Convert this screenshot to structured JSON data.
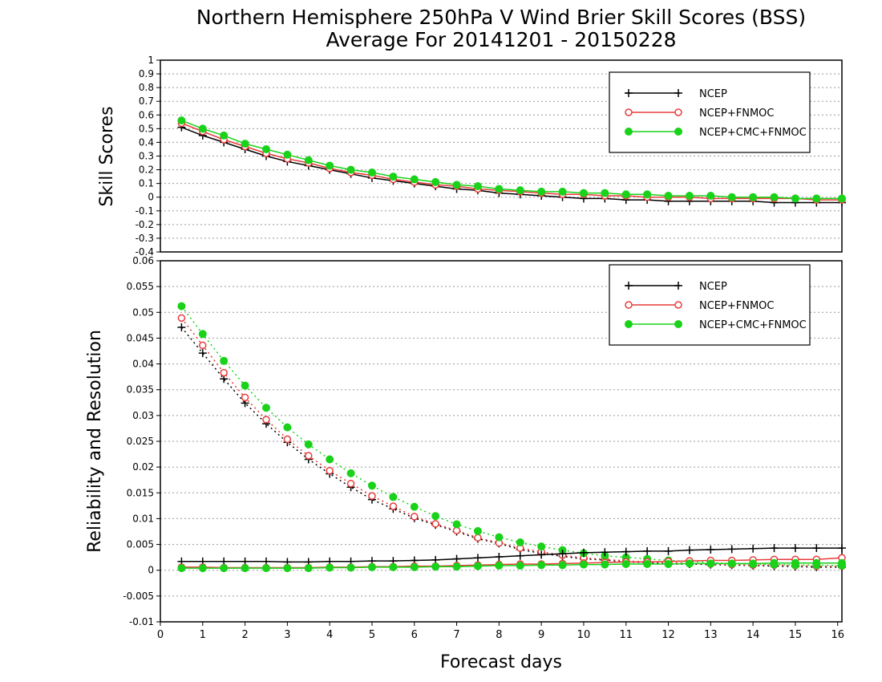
{
  "title_line1": "Northern Hemisphere 250hPa V Wind Brier Skill Scores (BSS)",
  "title_line2": "Average For 20141201 - 20150228",
  "chart_data": [
    {
      "type": "line",
      "ylabel": "Skill Scores",
      "ylim": [
        -0.4,
        1
      ],
      "yticks": [
        "1",
        "0.9",
        "0.8",
        "0.7",
        "0.6",
        "0.5",
        "0.4",
        "0.3",
        "0.2",
        "0.1",
        "0",
        "-0.1",
        "-0.2",
        "-0.3",
        "-0.4"
      ],
      "ytick_values": [
        1,
        0.9,
        0.8,
        0.7,
        0.6,
        0.5,
        0.4,
        0.3,
        0.2,
        0.1,
        0,
        -0.1,
        -0.2,
        -0.3,
        -0.4
      ],
      "xlim": [
        0,
        16.1
      ],
      "grid": true,
      "legend_position": "top-right",
      "x": [
        0.5,
        1,
        1.5,
        2,
        2.5,
        3,
        3.5,
        4,
        4.5,
        5,
        5.5,
        6,
        6.5,
        7,
        7.5,
        8,
        8.5,
        9,
        9.5,
        10,
        10.5,
        11,
        11.5,
        12,
        12.5,
        13,
        13.5,
        14,
        14.5,
        15,
        15.5,
        16.1
      ],
      "series": [
        {
          "name": "NCEP",
          "color": "#000000",
          "marker": "plus",
          "style": "solid",
          "values": [
            0.51,
            0.45,
            0.4,
            0.35,
            0.3,
            0.26,
            0.23,
            0.2,
            0.17,
            0.14,
            0.12,
            0.1,
            0.08,
            0.06,
            0.05,
            0.03,
            0.02,
            0.01,
            0.0,
            -0.01,
            -0.01,
            -0.02,
            -0.02,
            -0.03,
            -0.03,
            -0.03,
            -0.03,
            -0.03,
            -0.04,
            -0.04,
            -0.04,
            -0.04
          ]
        },
        {
          "name": "NCEP+FNMOC",
          "color": "#e83c3c",
          "marker": "open-circle",
          "style": "solid",
          "values": [
            0.54,
            0.48,
            0.42,
            0.37,
            0.32,
            0.28,
            0.25,
            0.21,
            0.18,
            0.16,
            0.13,
            0.11,
            0.09,
            0.08,
            0.06,
            0.05,
            0.04,
            0.03,
            0.02,
            0.02,
            0.01,
            0.01,
            0.0,
            0.0,
            0.0,
            -0.01,
            -0.01,
            -0.01,
            -0.01,
            -0.01,
            -0.02,
            -0.02
          ]
        },
        {
          "name": "NCEP+CMC+FNMOC",
          "color": "#19d219",
          "marker": "filled-circle",
          "style": "solid",
          "values": [
            0.56,
            0.5,
            0.45,
            0.39,
            0.35,
            0.31,
            0.27,
            0.23,
            0.2,
            0.18,
            0.15,
            0.13,
            0.11,
            0.09,
            0.08,
            0.06,
            0.05,
            0.04,
            0.04,
            0.03,
            0.03,
            0.02,
            0.02,
            0.01,
            0.01,
            0.01,
            0.0,
            0.0,
            0.0,
            -0.01,
            -0.01,
            -0.01
          ]
        }
      ]
    },
    {
      "type": "line",
      "ylabel": "Reliability and Resolution",
      "xlabel": "Forecast days",
      "ylim": [
        -0.01,
        0.06
      ],
      "yticks": [
        "0.06",
        "0.055",
        "0.05",
        "0.045",
        "0.04",
        "0.035",
        "0.03",
        "0.025",
        "0.02",
        "0.015",
        "0.01",
        "0.005",
        "0",
        "-0.005",
        "-0.01"
      ],
      "ytick_values": [
        0.06,
        0.055,
        0.05,
        0.045,
        0.04,
        0.035,
        0.03,
        0.025,
        0.02,
        0.015,
        0.01,
        0.005,
        0,
        -0.005,
        -0.01
      ],
      "xlim": [
        0,
        16.1
      ],
      "xticks": [
        "0",
        "1",
        "2",
        "3",
        "4",
        "5",
        "6",
        "7",
        "8",
        "9",
        "10",
        "11",
        "12",
        "13",
        "14",
        "15",
        "16"
      ],
      "xtick_values": [
        0,
        1,
        2,
        3,
        4,
        5,
        6,
        7,
        8,
        9,
        10,
        11,
        12,
        13,
        14,
        15,
        16
      ],
      "grid": true,
      "legend_position": "top-right",
      "x": [
        0.5,
        1,
        1.5,
        2,
        2.5,
        3,
        3.5,
        4,
        4.5,
        5,
        5.5,
        6,
        6.5,
        7,
        7.5,
        8,
        8.5,
        9,
        9.5,
        10,
        10.5,
        11,
        11.5,
        12,
        12.5,
        13,
        13.5,
        14,
        14.5,
        15,
        15.5,
        16.1
      ],
      "series": [
        {
          "name": "NCEP",
          "color": "#000000",
          "marker": "plus",
          "style": "dotted",
          "role": "resolution",
          "values": [
            0.0471,
            0.0421,
            0.0371,
            0.0324,
            0.0284,
            0.0248,
            0.0215,
            0.0187,
            0.0161,
            0.0137,
            0.0119,
            0.0101,
            0.0088,
            0.0075,
            0.0061,
            0.0052,
            0.004,
            0.0033,
            0.0027,
            0.0022,
            0.002,
            0.0016,
            0.0015,
            0.0012,
            0.0012,
            0.0011,
            0.001,
            0.0009,
            0.0008,
            0.0007,
            0.0006,
            0.0006
          ]
        },
        {
          "name": "NCEP+FNMOC",
          "color": "#e83c3c",
          "marker": "open-circle",
          "style": "dotted",
          "role": "resolution",
          "values": [
            0.0489,
            0.0436,
            0.0383,
            0.0335,
            0.0292,
            0.0254,
            0.0222,
            0.0193,
            0.0168,
            0.0144,
            0.0124,
            0.0104,
            0.009,
            0.0077,
            0.0063,
            0.0053,
            0.0043,
            0.0036,
            0.0029,
            0.0024,
            0.0021,
            0.0018,
            0.0016,
            0.0015,
            0.0014,
            0.0012,
            0.0011,
            0.001,
            0.001,
            0.0009,
            0.0008,
            0.0008
          ]
        },
        {
          "name": "NCEP+CMC+FNMOC",
          "color": "#19d219",
          "marker": "filled-circle",
          "style": "dotted",
          "role": "resolution",
          "values": [
            0.0512,
            0.0458,
            0.0406,
            0.0358,
            0.0315,
            0.0277,
            0.0244,
            0.0215,
            0.0188,
            0.0164,
            0.0142,
            0.0123,
            0.0105,
            0.0089,
            0.0076,
            0.0064,
            0.0054,
            0.0046,
            0.0039,
            0.0033,
            0.0028,
            0.0025,
            0.0022,
            0.0019,
            0.0017,
            0.0015,
            0.0013,
            0.0012,
            0.0011,
            0.001,
            0.001,
            0.0009
          ]
        },
        {
          "name": "NCEP",
          "color": "#000000",
          "marker": "plus",
          "style": "solid",
          "role": "reliability",
          "values": [
            0.0017,
            0.0017,
            0.0017,
            0.0017,
            0.0017,
            0.0016,
            0.0016,
            0.0017,
            0.0017,
            0.0018,
            0.0018,
            0.0019,
            0.002,
            0.0022,
            0.0024,
            0.0026,
            0.0028,
            0.003,
            0.0032,
            0.0034,
            0.0035,
            0.0036,
            0.0037,
            0.0037,
            0.0039,
            0.004,
            0.0041,
            0.0042,
            0.0043,
            0.0043,
            0.0043,
            0.0043
          ]
        },
        {
          "name": "NCEP+FNMOC",
          "color": "#e83c3c",
          "marker": "open-circle",
          "style": "solid",
          "role": "reliability",
          "values": [
            0.0006,
            0.0006,
            0.0005,
            0.0005,
            0.0005,
            0.0005,
            0.0005,
            0.0006,
            0.0006,
            0.0007,
            0.0007,
            0.0008,
            0.0008,
            0.0009,
            0.001,
            0.0011,
            0.0012,
            0.0012,
            0.0013,
            0.0014,
            0.0015,
            0.0016,
            0.0016,
            0.0017,
            0.0018,
            0.0019,
            0.0019,
            0.002,
            0.0021,
            0.0021,
            0.0021,
            0.0024
          ]
        },
        {
          "name": "NCEP+CMC+FNMOC",
          "color": "#19d219",
          "marker": "filled-circle",
          "style": "solid",
          "role": "reliability",
          "values": [
            0.0004,
            0.0004,
            0.0004,
            0.0004,
            0.0004,
            0.0004,
            0.0004,
            0.0005,
            0.0005,
            0.0006,
            0.0006,
            0.0006,
            0.0007,
            0.0007,
            0.0008,
            0.0009,
            0.0009,
            0.001,
            0.001,
            0.0011,
            0.0011,
            0.0012,
            0.0012,
            0.0012,
            0.0013,
            0.0013,
            0.0013,
            0.0013,
            0.0014,
            0.0014,
            0.0014,
            0.0014
          ]
        }
      ]
    }
  ]
}
